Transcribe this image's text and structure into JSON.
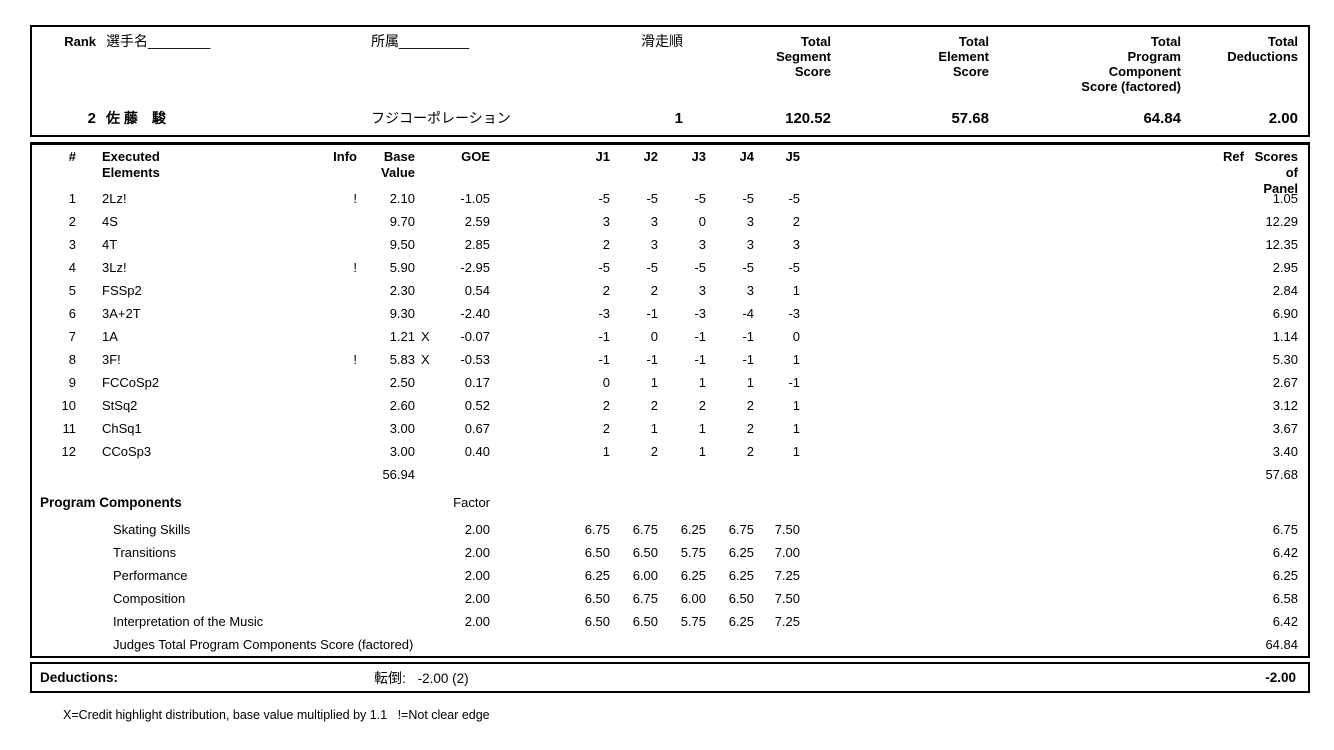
{
  "header": {
    "rank_label": "Rank",
    "rank_value": "2",
    "name_label": "選手名________",
    "name_value": "佐 藤　駿",
    "affiliation_label": "所属_________",
    "affiliation_value": "フジコーポレーション",
    "order_label": "滑走順",
    "order_value": "1",
    "tss_label": "Total\nSegment\nScore",
    "tss_value": "120.52",
    "tes_label": "Total\nElement\nScore",
    "tes_value": "57.68",
    "tpcs_label": "Total\nProgram\nComponent\nScore (factored)",
    "tpcs_value": "64.84",
    "tded_label": "Total\nDeductions",
    "tded_value": "2.00"
  },
  "elements": {
    "columns": {
      "num": "#",
      "executed": "Executed\nElements",
      "info": "Info",
      "base": "Base\nValue",
      "goe": "GOE",
      "judges": [
        "J1",
        "J2",
        "J3",
        "J4",
        "J5"
      ],
      "ref": "Ref",
      "panel": "Scores of\nPanel"
    },
    "rows": [
      {
        "num": "1",
        "name": "2Lz!",
        "info": "!",
        "base": "2.10",
        "x": "",
        "goe": "-1.05",
        "j": [
          "-5",
          "-5",
          "-5",
          "-5",
          "-5"
        ],
        "panel": "1.05"
      },
      {
        "num": "2",
        "name": "4S",
        "info": "",
        "base": "9.70",
        "x": "",
        "goe": "2.59",
        "j": [
          "3",
          "3",
          "0",
          "3",
          "2"
        ],
        "panel": "12.29"
      },
      {
        "num": "3",
        "name": "4T",
        "info": "",
        "base": "9.50",
        "x": "",
        "goe": "2.85",
        "j": [
          "2",
          "3",
          "3",
          "3",
          "3"
        ],
        "panel": "12.35"
      },
      {
        "num": "4",
        "name": "3Lz!",
        "info": "!",
        "base": "5.90",
        "x": "",
        "goe": "-2.95",
        "j": [
          "-5",
          "-5",
          "-5",
          "-5",
          "-5"
        ],
        "panel": "2.95"
      },
      {
        "num": "5",
        "name": "FSSp2",
        "info": "",
        "base": "2.30",
        "x": "",
        "goe": "0.54",
        "j": [
          "2",
          "2",
          "3",
          "3",
          "1"
        ],
        "panel": "2.84"
      },
      {
        "num": "6",
        "name": "3A+2T",
        "info": "",
        "base": "9.30",
        "x": "",
        "goe": "-2.40",
        "j": [
          "-3",
          "-1",
          "-3",
          "-4",
          "-3"
        ],
        "panel": "6.90"
      },
      {
        "num": "7",
        "name": "1A",
        "info": "",
        "base": "1.21",
        "x": "X",
        "goe": "-0.07",
        "j": [
          "-1",
          "0",
          "-1",
          "-1",
          "0"
        ],
        "panel": "1.14"
      },
      {
        "num": "8",
        "name": "3F!",
        "info": "!",
        "base": "5.83",
        "x": "X",
        "goe": "-0.53",
        "j": [
          "-1",
          "-1",
          "-1",
          "-1",
          "1"
        ],
        "panel": "5.30"
      },
      {
        "num": "9",
        "name": "FCCoSp2",
        "info": "",
        "base": "2.50",
        "x": "",
        "goe": "0.17",
        "j": [
          "0",
          "1",
          "1",
          "1",
          "-1"
        ],
        "panel": "2.67"
      },
      {
        "num": "10",
        "name": "StSq2",
        "info": "",
        "base": "2.60",
        "x": "",
        "goe": "0.52",
        "j": [
          "2",
          "2",
          "2",
          "2",
          "1"
        ],
        "panel": "3.12"
      },
      {
        "num": "11",
        "name": "ChSq1",
        "info": "",
        "base": "3.00",
        "x": "",
        "goe": "0.67",
        "j": [
          "2",
          "1",
          "1",
          "2",
          "1"
        ],
        "panel": "3.67"
      },
      {
        "num": "12",
        "name": "CCoSp3",
        "info": "",
        "base": "3.00",
        "x": "",
        "goe": "0.40",
        "j": [
          "1",
          "2",
          "1",
          "2",
          "1"
        ],
        "panel": "3.40"
      }
    ],
    "total_base": "56.94",
    "total_panel": "57.68"
  },
  "components": {
    "title": "Program Components",
    "factor_label": "Factor",
    "rows": [
      {
        "name": "Skating Skills",
        "factor": "2.00",
        "j": [
          "6.75",
          "6.75",
          "6.25",
          "6.75",
          "7.50"
        ],
        "panel": "6.75"
      },
      {
        "name": "Transitions",
        "factor": "2.00",
        "j": [
          "6.50",
          "6.50",
          "5.75",
          "6.25",
          "7.00"
        ],
        "panel": "6.42"
      },
      {
        "name": "Performance",
        "factor": "2.00",
        "j": [
          "6.25",
          "6.00",
          "6.25",
          "6.25",
          "7.25"
        ],
        "panel": "6.25"
      },
      {
        "name": "Composition",
        "factor": "2.00",
        "j": [
          "6.50",
          "6.75",
          "6.00",
          "6.50",
          "7.50"
        ],
        "panel": "6.58"
      },
      {
        "name": "Interpretation of the Music",
        "factor": "2.00",
        "j": [
          "6.50",
          "6.50",
          "5.75",
          "6.25",
          "7.25"
        ],
        "panel": "6.42"
      }
    ],
    "total_label": "Judges Total Program Components Score (factored)",
    "total_value": "64.84"
  },
  "deductions": {
    "label": "Deductions:",
    "detail_label": "転倒:",
    "detail_value": "-2.00 (2)",
    "total": "-2.00"
  },
  "footnote": "X=Credit highlight distribution, base value multiplied by 1.1   !=Not clear edge"
}
